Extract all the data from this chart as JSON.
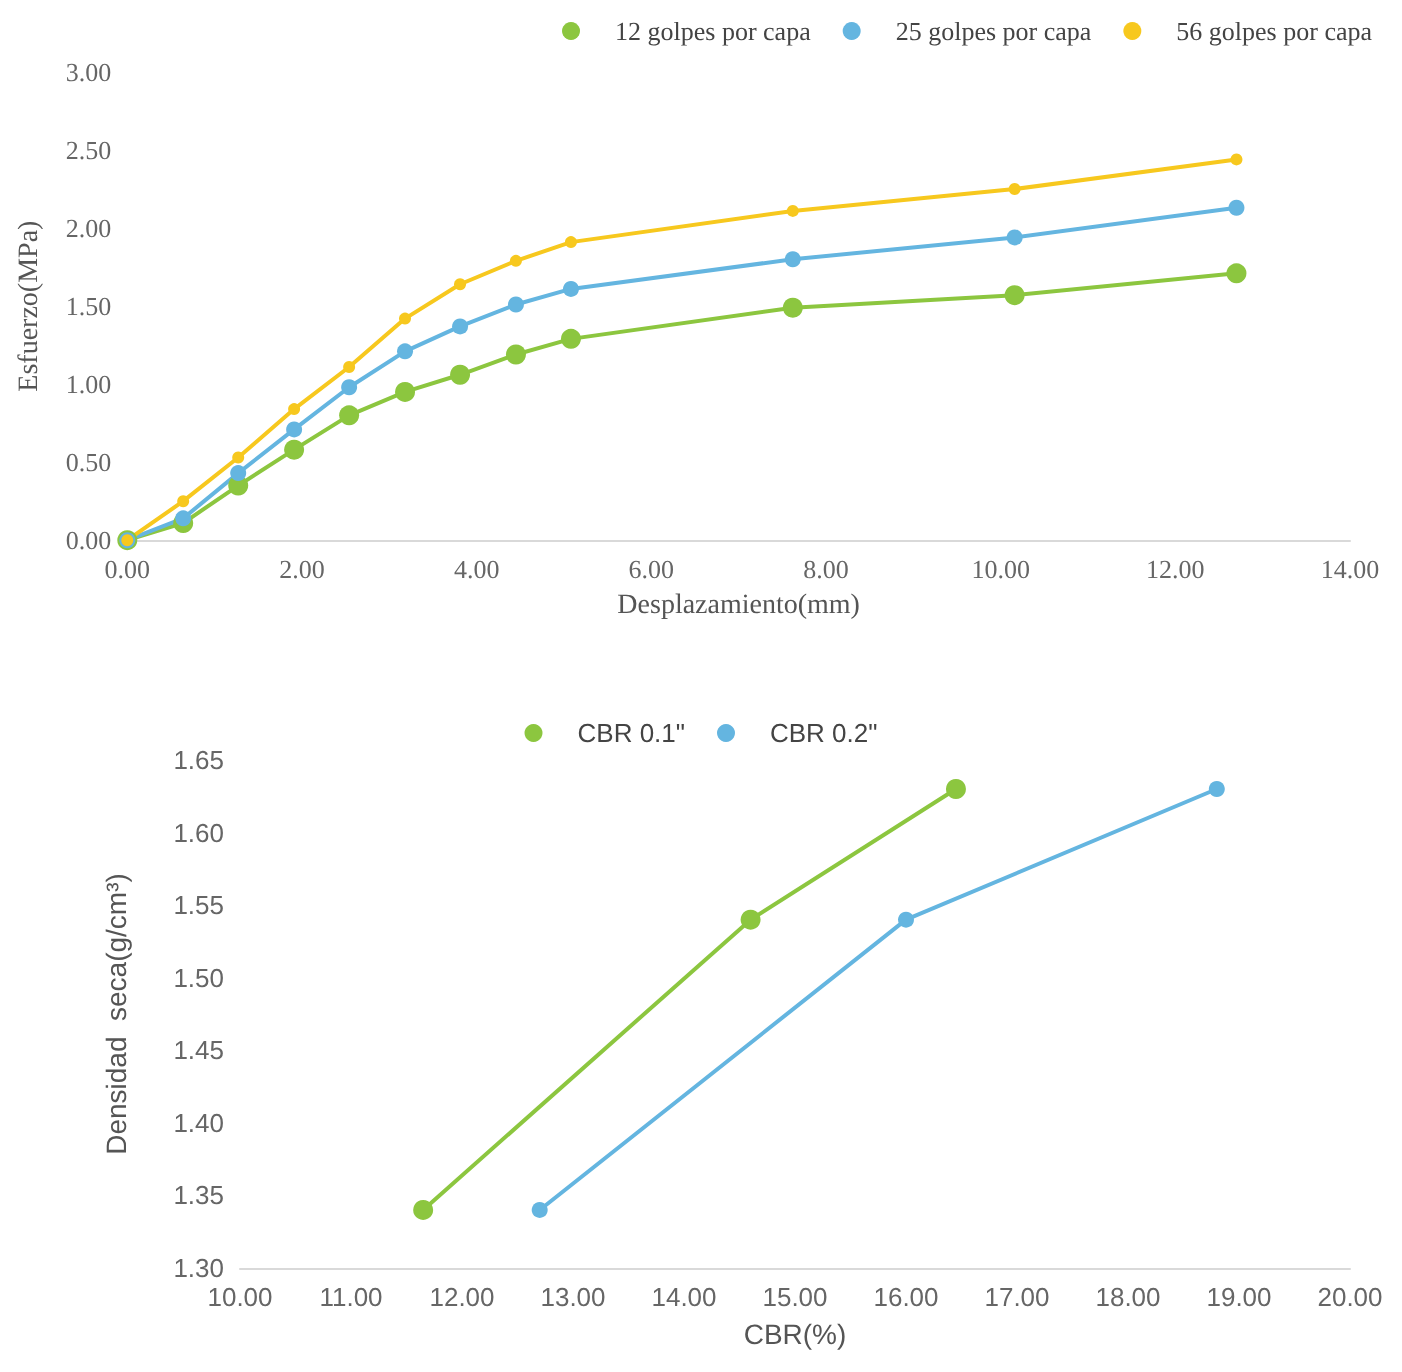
{
  "chart_data": [
    {
      "type": "line",
      "xlabel": "Desplazamiento(mm)",
      "ylabel": "Esfuerzo(MPa)",
      "x": [
        0,
        0.64,
        1.27,
        1.91,
        2.54,
        3.18,
        3.81,
        4.45,
        5.08,
        7.62,
        10.16,
        12.7
      ],
      "series": [
        {
          "name": "12 golpes por capa",
          "color": "#8cc63f",
          "values": [
            0,
            0.11,
            0.35,
            0.58,
            0.8,
            0.95,
            1.06,
            1.19,
            1.29,
            1.49,
            1.57,
            1.71
          ]
        },
        {
          "name": "25 golpes por capa",
          "color": "#64b5e0",
          "values": [
            0,
            0.14,
            0.43,
            0.71,
            0.98,
            1.21,
            1.37,
            1.51,
            1.61,
            1.8,
            1.94,
            2.13
          ]
        },
        {
          "name": "56 golpes por capa",
          "color": "#f7c81e",
          "values": [
            0,
            0.25,
            0.53,
            0.84,
            1.11,
            1.42,
            1.64,
            1.79,
            1.91,
            2.11,
            2.25,
            2.44
          ]
        }
      ],
      "xlim": [
        0,
        14
      ],
      "xticks": [
        {
          "value": 0,
          "label": "0.00"
        },
        {
          "value": 2,
          "label": "2.00"
        },
        {
          "value": 4,
          "label": "4.00"
        },
        {
          "value": 6,
          "label": "6.00"
        },
        {
          "value": 8,
          "label": "8.00"
        },
        {
          "value": 10,
          "label": "10.00"
        },
        {
          "value": 12,
          "label": "12.00"
        },
        {
          "value": 14,
          "label": "14.00"
        }
      ],
      "ylim": [
        0,
        3
      ],
      "yticks": [
        {
          "value": 0,
          "label": "0.00"
        },
        {
          "value": 0.5,
          "label": "0.50"
        },
        {
          "value": 1,
          "label": "1.00"
        },
        {
          "value": 1.5,
          "label": "1.50"
        },
        {
          "value": 2,
          "label": "2.00"
        },
        {
          "value": 2.5,
          "label": "2.50"
        },
        {
          "value": 3,
          "label": "3.00"
        }
      ],
      "grid": false,
      "legend": "top right",
      "marker": "circle"
    },
    {
      "type": "line",
      "xlabel": "CBR(%)",
      "ylabel": "Densidad  seca(g/cm³)",
      "series": [
        {
          "name": "CBR 0.1\"",
          "color": "#8cc63f",
          "x": [
            11.65,
            14.6,
            16.45
          ],
          "values": [
            1.34,
            1.54,
            1.63
          ]
        },
        {
          "name": "CBR 0.2\"",
          "color": "#64b5e0",
          "x": [
            12.7,
            16.0,
            18.8
          ],
          "values": [
            1.34,
            1.54,
            1.63
          ]
        }
      ],
      "xlim": [
        10,
        20
      ],
      "xticks": [
        {
          "value": 10,
          "label": "10.00"
        },
        {
          "value": 11,
          "label": "11.00"
        },
        {
          "value": 12,
          "label": "12.00"
        },
        {
          "value": 13,
          "label": "13.00"
        },
        {
          "value": 14,
          "label": "14.00"
        },
        {
          "value": 15,
          "label": "15.00"
        },
        {
          "value": 16,
          "label": "16.00"
        },
        {
          "value": 17,
          "label": "17.00"
        },
        {
          "value": 18,
          "label": "18.00"
        },
        {
          "value": 19,
          "label": "19.00"
        },
        {
          "value": 20,
          "label": "20.00"
        }
      ],
      "ylim": [
        1.3,
        1.65
      ],
      "yticks": [
        {
          "value": 1.3,
          "label": "1.30"
        },
        {
          "value": 1.35,
          "label": "1.35"
        },
        {
          "value": 1.4,
          "label": "1.40"
        },
        {
          "value": 1.45,
          "label": "1.45"
        },
        {
          "value": 1.5,
          "label": "1.50"
        },
        {
          "value": 1.55,
          "label": "1.55"
        },
        {
          "value": 1.6,
          "label": "1.60"
        },
        {
          "value": 1.65,
          "label": "1.65"
        }
      ],
      "grid": false,
      "legend": "top",
      "marker": "circle"
    }
  ]
}
